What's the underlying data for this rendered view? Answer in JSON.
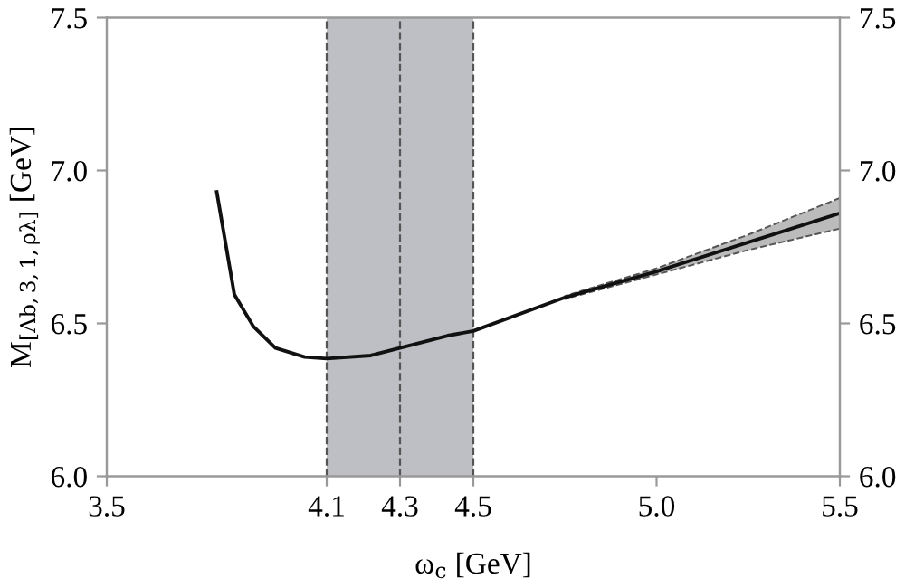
{
  "chart_data": {
    "type": "line",
    "xlabel": "ω$_{c}$ [GeV]",
    "ylabel": "M$_{[Λb,3,1,ρλ]}$ [GeV]",
    "x": [
      3.8,
      3.848,
      3.9,
      3.96,
      4.04,
      4.1,
      4.22,
      4.3,
      4.43,
      4.5,
      4.75,
      5.0,
      5.25,
      5.5
    ],
    "series": [
      {
        "color": "#111111",
        "values": [
          6.93,
          6.595,
          6.49,
          6.42,
          6.39,
          6.385,
          6.395,
          6.42,
          6.46,
          6.475,
          6.585,
          6.67,
          6.765,
          6.86
        ],
        "lower": [
          null,
          null,
          null,
          null,
          null,
          null,
          null,
          null,
          null,
          null,
          6.58,
          6.66,
          6.74,
          6.81
        ],
        "upper": [
          null,
          null,
          null,
          null,
          null,
          null,
          null,
          null,
          null,
          null,
          6.59,
          6.68,
          6.79,
          6.91
        ]
      }
    ],
    "xlim": [
      3.5,
      5.5
    ],
    "xticks": [
      3.5,
      4.1,
      4.3,
      4.5,
      {
        "value": 5,
        "label": "5.0"
      },
      5.5
    ],
    "ylim": [
      6.0,
      7.5
    ],
    "yticks": [
      {
        "value": 6,
        "label": "6.0"
      },
      6.5,
      {
        "value": 7,
        "label": "7.0"
      },
      7.5
    ],
    "y2lim": [
      6.0,
      7.5
    ],
    "y2ticks": [
      {
        "value": 6,
        "label": "6.0"
      },
      6.5,
      {
        "value": 7,
        "label": "7.0"
      },
      7.5
    ],
    "bands": [
      {
        "axis": "x",
        "from": 4.1,
        "to": 4.5,
        "color": "#bebfc4"
      }
    ],
    "ref_lines": [
      {
        "axis": "x",
        "value": 4.1,
        "color": "#555555",
        "line_style": "dashed"
      },
      {
        "axis": "x",
        "value": 4.3,
        "color": "#555555",
        "line_style": "dashed"
      },
      {
        "axis": "x",
        "value": 4.5,
        "color": "#555555",
        "line_style": "dashed"
      }
    ],
    "grid": false,
    "legend": false,
    "marker": "none",
    "line_style": "solid"
  }
}
